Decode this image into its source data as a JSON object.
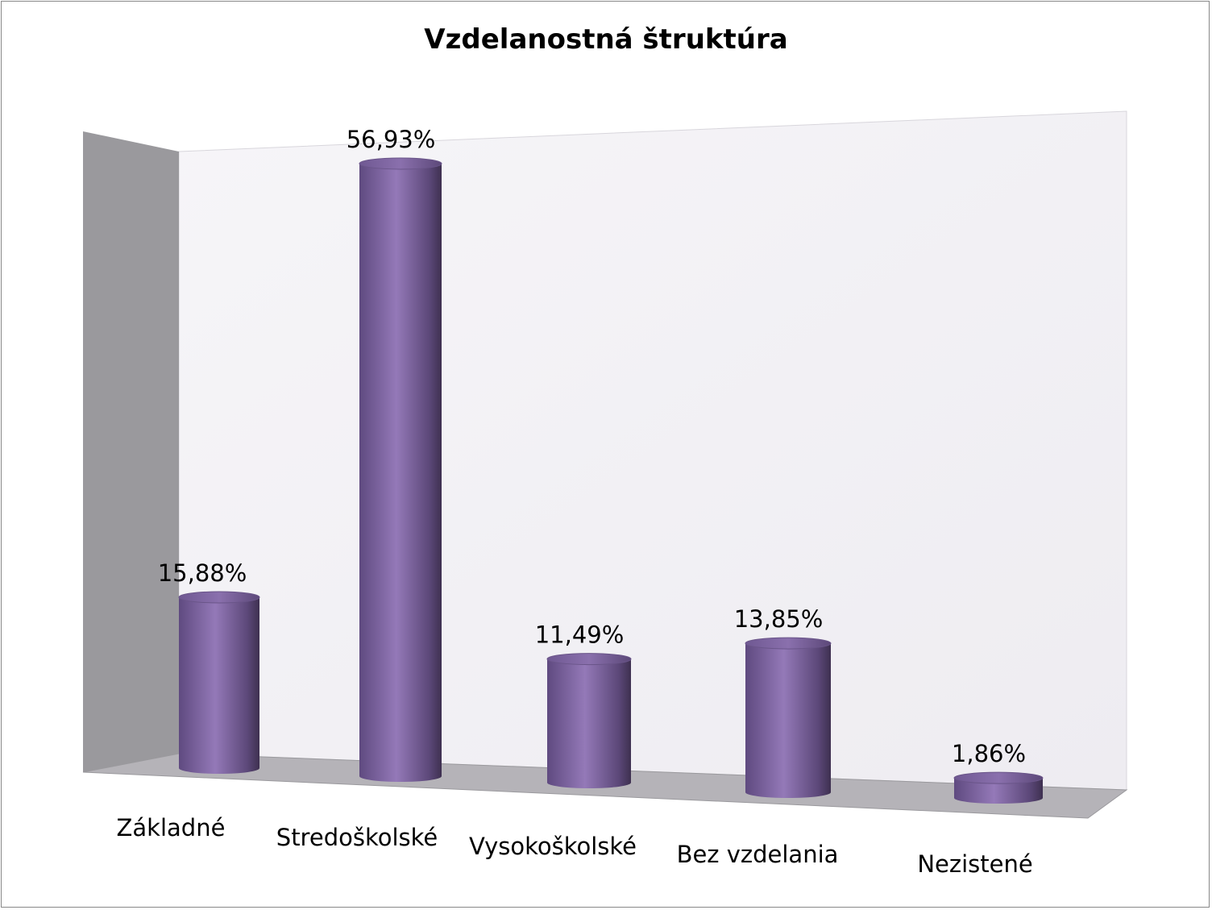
{
  "chart_data": {
    "type": "bar",
    "style": "3d-cylinder",
    "title": "Vzdelanostná štruktúra",
    "categories": [
      "Základné",
      "Stredoškolské",
      "Vysokoškolské",
      "Bez vzdelania",
      "Nezistené"
    ],
    "values": [
      15.88,
      56.93,
      11.49,
      13.85,
      1.86
    ],
    "data_labels": [
      "15,88%",
      "56,93%",
      "11,49%",
      "13,85%",
      "1,86%"
    ],
    "xlabel": "",
    "ylabel": "",
    "ylim": [
      0,
      60
    ],
    "grid": false,
    "legend": "none",
    "colors": {
      "bar": "#8064a2",
      "bar_light": "#9b82c0",
      "bar_dark": "#4b3a62",
      "wall": "#9a999d",
      "floor": "#b5b3b8",
      "back": "#f0eef3"
    }
  }
}
